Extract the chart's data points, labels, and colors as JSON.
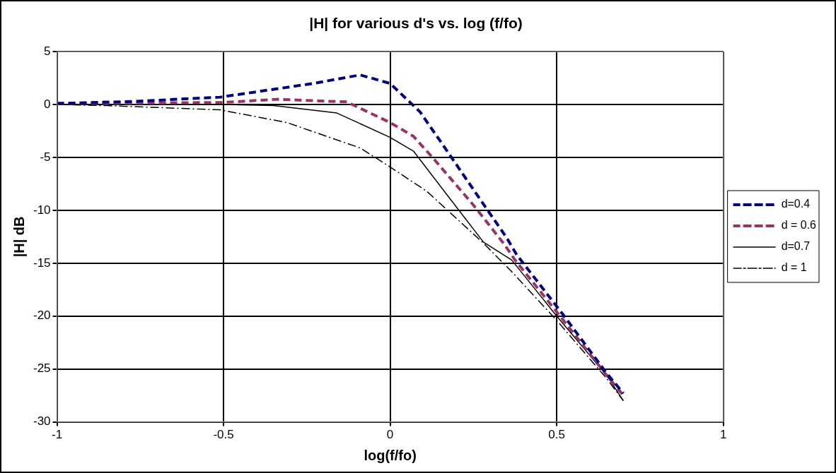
{
  "chart_data": {
    "type": "line",
    "title": "|H| for various d's vs. log (f/fo)",
    "xlabel": "log(f/fo)",
    "ylabel": "|H| dB",
    "xlim": [
      -1,
      1
    ],
    "xticks": [
      -1,
      -0.5,
      0,
      0.5,
      1
    ],
    "ylim": [
      -30,
      5
    ],
    "yticks": [
      -30,
      -25,
      -20,
      -15,
      -10,
      -5,
      0,
      5
    ],
    "grid": true,
    "legend": "right",
    "marker": "none",
    "series": [
      {
        "name": "d=0.4",
        "color": "#000080",
        "line_style": "dashed",
        "x": [
          -1,
          -0.77,
          -0.51,
          -0.23,
          -0.09,
          0,
          0.09,
          0.18,
          0.26,
          0.35,
          0.38,
          0.52,
          0.645,
          0.7
        ],
        "values": [
          0.1,
          0.3,
          0.7,
          2.0,
          2.8,
          2.0,
          -0.7,
          -4.8,
          -8.5,
          -12.6,
          -14.2,
          -19.9,
          -25.2,
          -27.3
        ]
      },
      {
        "name": "d = 0.6",
        "color": "#993366",
        "line_style": "dashed",
        "x": [
          -1,
          -0.5,
          -0.34,
          -0.13,
          0,
          0.07,
          0.13,
          0.25,
          0.34,
          0.375,
          0.5,
          0.645,
          0.7
        ],
        "values": [
          0.1,
          0.2,
          0.5,
          0.25,
          -1.7,
          -3.0,
          -5.1,
          -9.5,
          -13.1,
          -14.7,
          -19.6,
          -25.4,
          -27.5
        ]
      },
      {
        "name": "d=0.7",
        "color": "#000000",
        "line_style": "solid",
        "x": [
          -1,
          -0.5,
          -0.35,
          -0.16,
          0,
          0.07,
          0.17,
          0.28,
          0.365,
          0.5,
          0.65,
          0.7
        ],
        "values": [
          0,
          0,
          -0.1,
          -0.8,
          -3.1,
          -4.4,
          -8.5,
          -13,
          -14.7,
          -20,
          -25.6,
          -28
        ]
      },
      {
        "name": "d = 1",
        "color": "#000000",
        "line_style": "dotted",
        "x": [
          -1,
          -0.85,
          -0.51,
          -0.31,
          -0.09,
          0,
          0.11,
          0.28,
          0.365,
          0.5,
          0.65,
          0.7
        ],
        "values": [
          0,
          -0.1,
          -0.5,
          -1.7,
          -4.1,
          -5.9,
          -8.2,
          -13.1,
          -15.8,
          -20.4,
          -25.9,
          -28
        ]
      }
    ]
  }
}
